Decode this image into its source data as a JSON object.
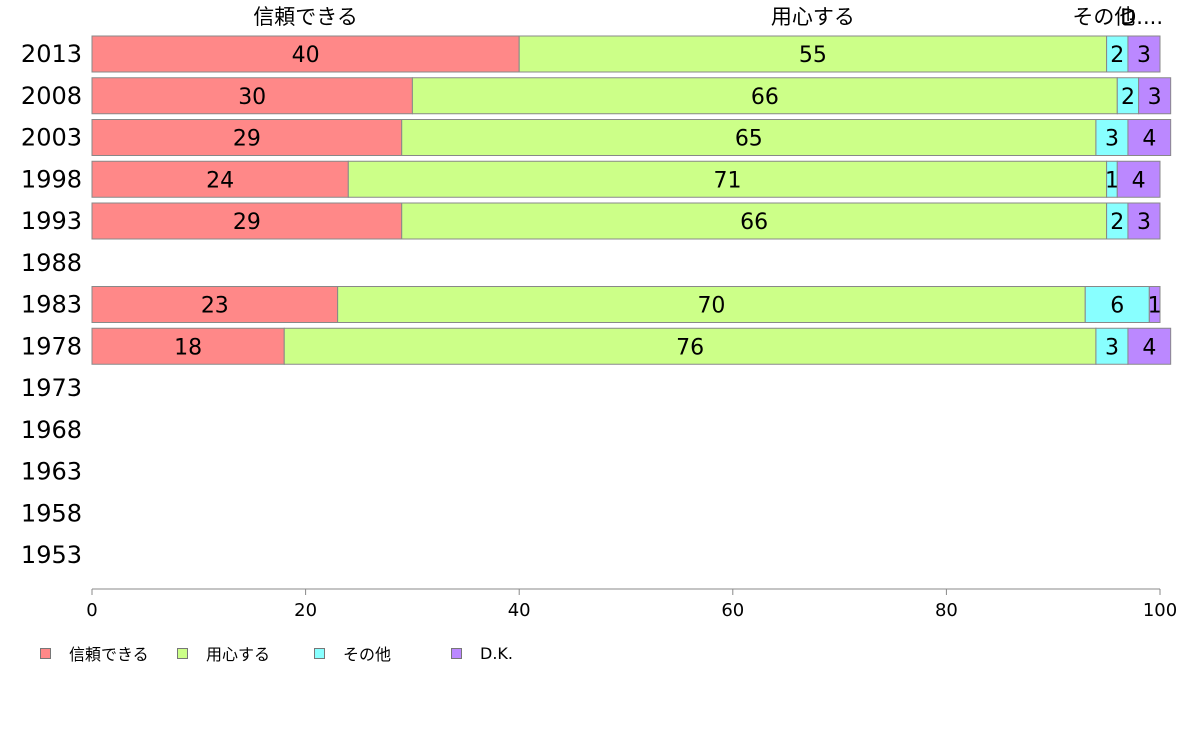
{
  "chart_data": {
    "type": "bar",
    "orientation": "horizontal",
    "stacked": true,
    "categories": [
      "2013",
      "2008",
      "2003",
      "1998",
      "1993",
      "1988",
      "1983",
      "1978",
      "1973",
      "1968",
      "1963",
      "1958",
      "1953"
    ],
    "series": [
      {
        "name": "信頼できる",
        "color": "#ff8888",
        "values": [
          40,
          30,
          29,
          24,
          29,
          null,
          23,
          18,
          null,
          null,
          null,
          null,
          null
        ]
      },
      {
        "name": "用心する",
        "color": "#ccff88",
        "values": [
          55,
          66,
          65,
          71,
          66,
          null,
          70,
          76,
          null,
          null,
          null,
          null,
          null
        ]
      },
      {
        "name": "その他",
        "color": "#88ffff",
        "values": [
          2,
          2,
          3,
          1,
          2,
          null,
          6,
          3,
          null,
          null,
          null,
          null,
          null
        ]
      },
      {
        "name": "D.K.",
        "color": "#bb88ff",
        "values": [
          3,
          3,
          4,
          4,
          3,
          null,
          1,
          4,
          null,
          null,
          null,
          null,
          null
        ]
      }
    ],
    "top_labels": [
      "信頼できる",
      "用心する",
      "その他",
      "D...."
    ],
    "xlim": [
      0,
      100
    ],
    "xticks": [
      0,
      20,
      40,
      60,
      80,
      100
    ],
    "xlabel": "",
    "ylabel": "",
    "grid": false,
    "legend_position": "bottom-left"
  }
}
